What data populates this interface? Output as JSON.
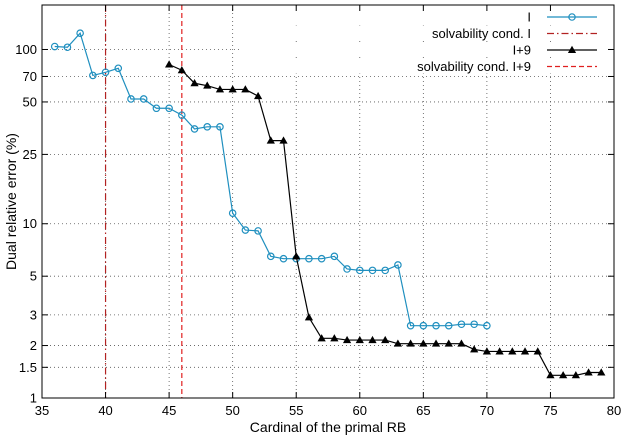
{
  "chart_data": {
    "type": "line",
    "title": "",
    "xlabel": "Cardinal of the primal RB",
    "ylabel": "Dual relative error (%)",
    "xlim": [
      35,
      80
    ],
    "ylim": [
      1,
      180
    ],
    "yscale": "log",
    "grid": true,
    "legend_position": "top-right",
    "x_ticks": [
      35,
      40,
      45,
      50,
      55,
      60,
      65,
      70,
      75,
      80
    ],
    "y_ticks": [
      1,
      1.5,
      2,
      3,
      5,
      10,
      25,
      50,
      70,
      100
    ],
    "x_tick_labels": [
      "35",
      "40",
      "45",
      "50",
      "55",
      "60",
      "65",
      "70",
      "75",
      "80"
    ],
    "y_tick_labels": [
      "1",
      "1.5",
      "2",
      "3",
      "5",
      "10",
      "25",
      "50",
      "70",
      "100"
    ],
    "series": [
      {
        "name": "I",
        "color": "#1f8fbf",
        "marker": "circle",
        "x": [
          36,
          37,
          38,
          39,
          40,
          41,
          42,
          43,
          44,
          45,
          46,
          47,
          48,
          49,
          50,
          51,
          52,
          53,
          54,
          55,
          56,
          57,
          58,
          59,
          60,
          61,
          62,
          63,
          64,
          65,
          66,
          67,
          68,
          69,
          70
        ],
        "y": [
          104,
          103,
          124,
          71,
          74,
          78,
          52,
          52,
          46,
          46,
          42,
          35,
          36,
          36,
          11.5,
          9.2,
          9.1,
          6.5,
          6.3,
          6.3,
          6.3,
          6.3,
          6.5,
          5.5,
          5.4,
          5.4,
          5.4,
          5.8,
          2.6,
          2.6,
          2.6,
          2.6,
          2.65,
          2.65,
          2.6
        ]
      },
      {
        "name": "I+9",
        "color": "#000000",
        "marker": "triangle",
        "x": [
          45,
          46,
          47,
          48,
          49,
          50,
          51,
          52,
          53,
          54,
          55,
          56,
          57,
          58,
          59,
          60,
          61,
          62,
          63,
          64,
          65,
          66,
          67,
          68,
          69,
          70,
          71,
          72,
          73,
          74,
          75,
          76,
          77,
          78,
          79
        ],
        "y": [
          82,
          76,
          64,
          62,
          59,
          59,
          59,
          54,
          30,
          30,
          6.5,
          2.9,
          2.2,
          2.2,
          2.15,
          2.15,
          2.15,
          2.15,
          2.05,
          2.05,
          2.05,
          2.05,
          2.05,
          2.05,
          1.9,
          1.85,
          1.85,
          1.85,
          1.85,
          1.85,
          1.35,
          1.35,
          1.35,
          1.4,
          1.4
        ]
      }
    ],
    "vertical_lines": [
      {
        "name": "solvability cond.  I",
        "x": 40,
        "color": "#b22222",
        "style": "dash-dot"
      },
      {
        "name": "solvability cond.  I+9",
        "x": 46,
        "color": "#e02020",
        "style": "dashed"
      }
    ]
  }
}
